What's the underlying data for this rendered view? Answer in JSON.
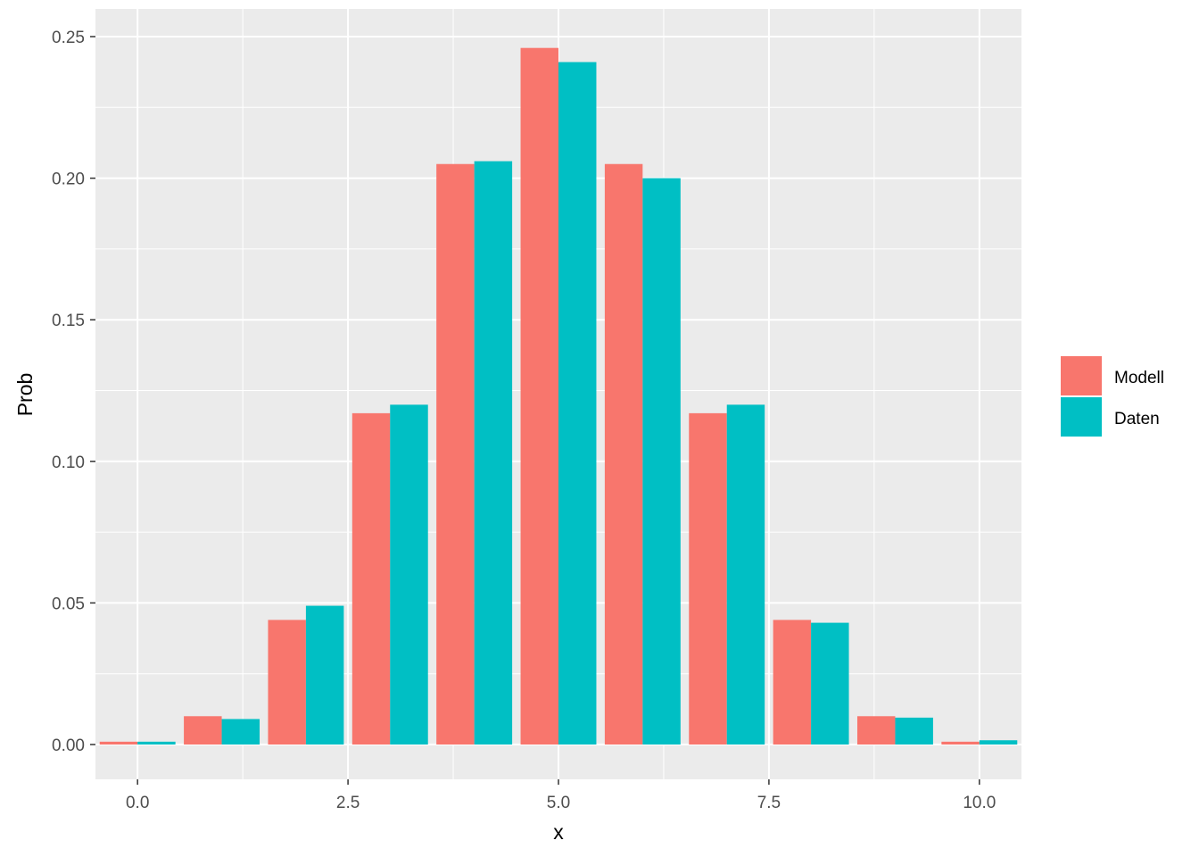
{
  "chart_data": {
    "type": "bar",
    "title": "",
    "xlabel": "x",
    "ylabel": "Prob",
    "x": [
      0,
      1,
      2,
      3,
      4,
      5,
      6,
      7,
      8,
      9,
      10
    ],
    "series": [
      {
        "name": "Modell",
        "color": "#F8766D",
        "values": [
          0.001,
          0.01,
          0.044,
          0.117,
          0.205,
          0.246,
          0.205,
          0.117,
          0.044,
          0.01,
          0.001
        ]
      },
      {
        "name": "Daten",
        "color": "#00BFC4",
        "values": [
          0.001,
          0.009,
          0.049,
          0.12,
          0.206,
          0.241,
          0.2,
          0.12,
          0.043,
          0.0095,
          0.0015
        ]
      }
    ],
    "xlim": [
      -0.5,
      10.5
    ],
    "ylim": [
      0,
      0.25
    ],
    "x_ticks": [
      0,
      2.5,
      5,
      7.5,
      10
    ],
    "x_tick_labels": [
      "0.0",
      "2.5",
      "5.0",
      "7.5",
      "10.0"
    ],
    "y_ticks": [
      0,
      0.05,
      0.1,
      0.15,
      0.2,
      0.25
    ],
    "y_tick_labels": [
      "0.00",
      "0.05",
      "0.10",
      "0.15",
      "0.20",
      "0.25"
    ],
    "grid": true,
    "legend_position": "right",
    "panel_background": "#EBEBEB"
  }
}
